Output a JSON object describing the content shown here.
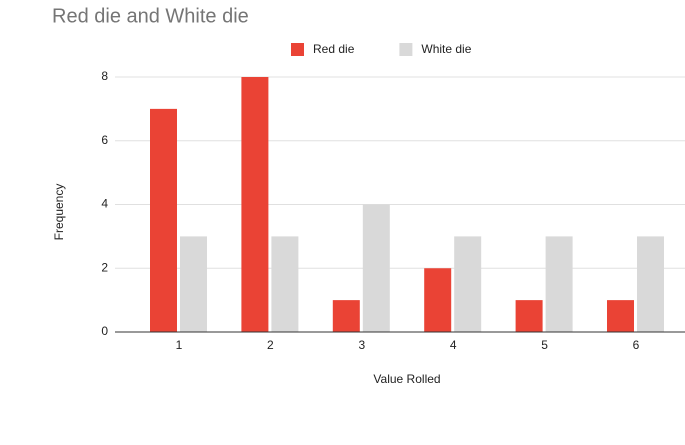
{
  "chart_data": {
    "type": "bar",
    "title": "Red die and White die",
    "x_label": "Value Rolled",
    "y_label": "Frequency",
    "categories": [
      "1",
      "2",
      "3",
      "4",
      "5",
      "6"
    ],
    "series": [
      {
        "name": "Red die",
        "color": "#ea4335",
        "values": [
          7,
          8,
          1,
          2,
          1,
          1
        ]
      },
      {
        "name": "White die",
        "color": "#d9d9d9",
        "values": [
          3,
          3,
          4,
          3,
          3,
          3
        ]
      }
    ],
    "ylim": [
      0,
      8
    ],
    "yticks": [
      0,
      2,
      4,
      6,
      8
    ],
    "grid": true,
    "legend": "top"
  }
}
